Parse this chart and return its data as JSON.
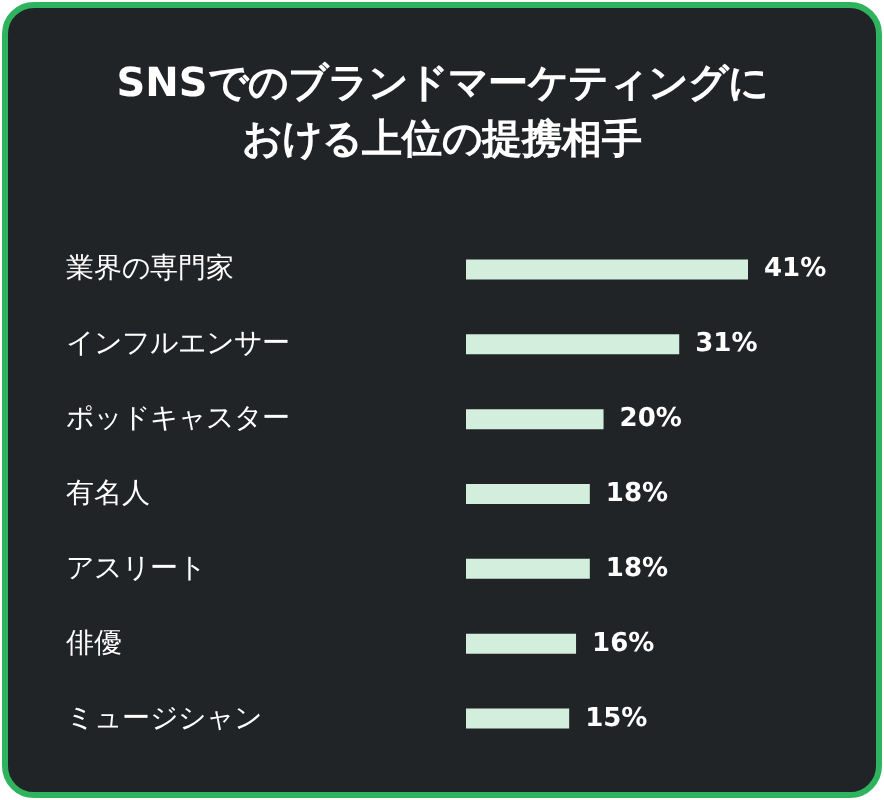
{
  "chart_data": {
    "type": "bar",
    "orientation": "horizontal",
    "title": "SNSでのブランドマーケティングにおける上位の提携相手",
    "categories": [
      "業界の専門家",
      "インフルエンサー",
      "ポッドキャスター",
      "有名人",
      "アスリート",
      "俳優",
      "ミュージシャン"
    ],
    "values": [
      41,
      31,
      20,
      18,
      18,
      16,
      15
    ],
    "value_labels": [
      "41%",
      "31%",
      "20%",
      "18%",
      "18%",
      "16%",
      "15%"
    ],
    "color": "#d3eedd"
  }
}
